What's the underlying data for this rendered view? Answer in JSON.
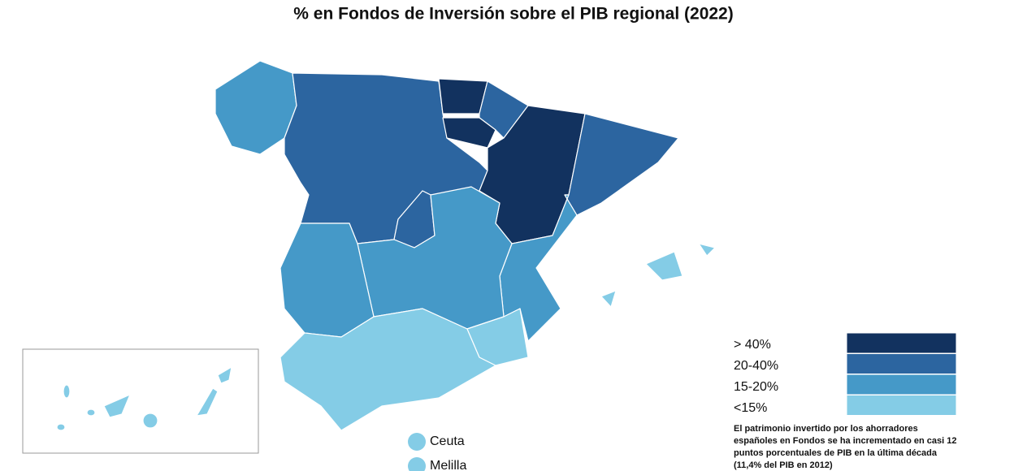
{
  "title": "% en Fondos de Inversión sobre el PIB regional (2022)",
  "legend": [
    {
      "label": "> 40%",
      "color": "#12325f"
    },
    {
      "label": "20-40%",
      "color": "#2c65a0"
    },
    {
      "label": "15-20%",
      "color": "#4599c8"
    },
    {
      "label": "<15%",
      "color": "#84cce6"
    }
  ],
  "cities": [
    "Ceuta",
    "Melilla"
  ],
  "note_lines": [
    "El patrimonio invertido por los ahorradores",
    "españoles en Fondos se ha incrementado en casi 12",
    "puntos porcentuales de PIB en la última década",
    "(11,4% del PIB en 2012)"
  ]
}
